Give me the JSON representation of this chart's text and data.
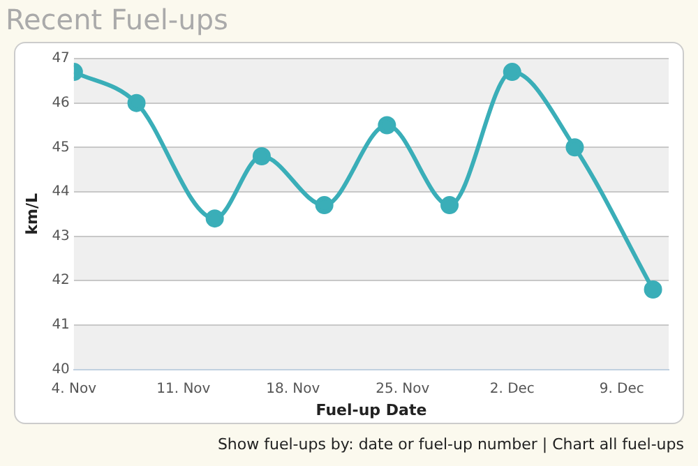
{
  "chart_data": {
    "type": "line",
    "title": "Recent Fuel-ups",
    "xlabel": "Fuel-up Date",
    "ylabel": "km/L",
    "x": [
      "--11-04",
      "--11-08",
      "--11-13",
      "--11-16",
      "--11-20",
      "--11-24",
      "--11-28",
      "--12-02",
      "--12-06",
      "--12-11"
    ],
    "series": [
      {
        "color": "#3aaeb8",
        "values": [
          46.7,
          46.0,
          43.4,
          44.8,
          43.7,
          45.5,
          43.7,
          46.7,
          45.0,
          41.8
        ]
      }
    ],
    "xlim": [
      "--11-04",
      "--12-12"
    ],
    "xticks": [
      {
        "value": "--11-04",
        "label": "4. Nov"
      },
      {
        "value": "--11-11",
        "label": "11. Nov"
      },
      {
        "value": "--11-18",
        "label": "18. Nov"
      },
      {
        "value": "--11-25",
        "label": "25. Nov"
      },
      {
        "value": "--12-02",
        "label": "2. Dec"
      },
      {
        "value": "--12-09",
        "label": "9. Dec"
      }
    ],
    "ylim": [
      40,
      47
    ],
    "yticks": [
      40,
      41,
      42,
      43,
      44,
      45,
      46,
      47
    ],
    "grid": "y",
    "legend": false,
    "marker": "circle",
    "line_style": "solid",
    "annotations": [
      "Show fuel-ups by: date or fuel-up number | Chart all fuel-ups"
    ]
  }
}
